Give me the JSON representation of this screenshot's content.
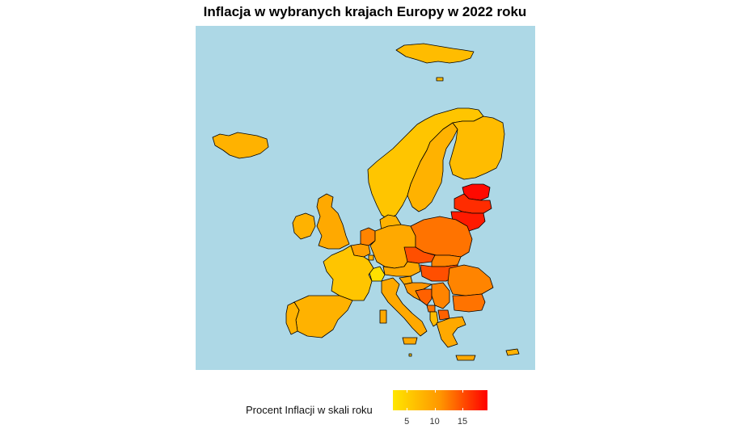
{
  "title": "Inflacja w wybranych krajach Europy w 2022 roku",
  "colors": {
    "sea": "#add8e6",
    "land_border": "#000000",
    "scale_low": "#ffe600",
    "scale_high": "#ff0000"
  },
  "legend": {
    "title": "Procent Inflacji w skali roku",
    "min": 2.5,
    "max": 19.5,
    "ticks": [
      {
        "value": 5,
        "label": "5"
      },
      {
        "value": 10,
        "label": "10"
      },
      {
        "value": 15,
        "label": "15"
      }
    ]
  },
  "map_data": {
    "regions": [
      {
        "name": "Iceland",
        "value": 8
      },
      {
        "name": "Svalbard",
        "value": 7
      },
      {
        "name": "Norway",
        "value": 6
      },
      {
        "name": "Sweden",
        "value": 8
      },
      {
        "name": "Finland",
        "value": 7
      },
      {
        "name": "Estonia",
        "value": 19
      },
      {
        "name": "Latvia",
        "value": 17
      },
      {
        "name": "Lithuania",
        "value": 18
      },
      {
        "name": "Denmark",
        "value": 8
      },
      {
        "name": "United Kingdom",
        "value": 9
      },
      {
        "name": "Ireland",
        "value": 8
      },
      {
        "name": "Netherlands",
        "value": 12
      },
      {
        "name": "Belgium",
        "value": 10
      },
      {
        "name": "Luxembourg",
        "value": 8
      },
      {
        "name": "Germany",
        "value": 9
      },
      {
        "name": "Poland",
        "value": 13
      },
      {
        "name": "Czechia",
        "value": 15
      },
      {
        "name": "Slovakia",
        "value": 12
      },
      {
        "name": "Hungary",
        "value": 15
      },
      {
        "name": "Austria",
        "value": 9
      },
      {
        "name": "Switzerland",
        "value": 3
      },
      {
        "name": "France",
        "value": 6
      },
      {
        "name": "Spain",
        "value": 8
      },
      {
        "name": "Portugal",
        "value": 8
      },
      {
        "name": "Italy",
        "value": 9
      },
      {
        "name": "Slovenia",
        "value": 9
      },
      {
        "name": "Croatia",
        "value": 11
      },
      {
        "name": "Bosnia and Herzegovina",
        "value": 14
      },
      {
        "name": "Serbia",
        "value": 12
      },
      {
        "name": "Montenegro",
        "value": 13
      },
      {
        "name": "Albania",
        "value": 7
      },
      {
        "name": "North Macedonia",
        "value": 14
      },
      {
        "name": "Romania",
        "value": 12
      },
      {
        "name": "Bulgaria",
        "value": 13
      },
      {
        "name": "Greece",
        "value": 9
      },
      {
        "name": "Cyprus",
        "value": 8
      },
      {
        "name": "Malta",
        "value": 6
      }
    ]
  }
}
